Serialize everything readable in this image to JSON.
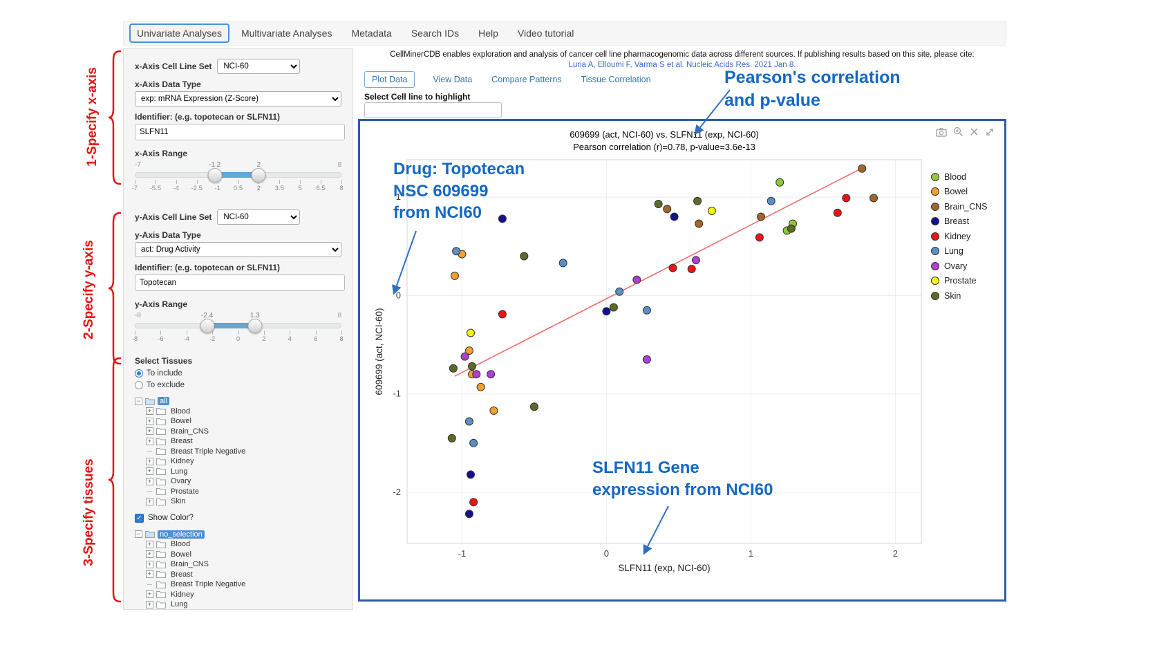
{
  "nav": {
    "items": [
      {
        "label": "Univariate Analyses",
        "active": true
      },
      {
        "label": "Multivariate Analyses",
        "active": false
      },
      {
        "label": "Metadata",
        "active": false
      },
      {
        "label": "Search IDs",
        "active": false
      },
      {
        "label": "Help",
        "active": false
      },
      {
        "label": "Video tutorial",
        "active": false
      }
    ]
  },
  "side_annotations": [
    {
      "label": "1-Specify x-axis"
    },
    {
      "label": "2-Specify y-axis"
    },
    {
      "label": "3-Specify tissues"
    }
  ],
  "sidebar": {
    "x_axis": {
      "cell_line_set_label": "x-Axis Cell Line Set",
      "cell_line_set_value": "NCI-60",
      "data_type_label": "x-Axis Data Type",
      "data_type_value": "exp: mRNA Expression (Z-Score)",
      "identifier_label": "Identifier: (e.g. topotecan or SLFN11)",
      "identifier_value": "SLFN11",
      "range_label": "x-Axis Range",
      "slider": {
        "min": -7,
        "max": 8,
        "from": -1.2,
        "to": 2,
        "ticks": [
          "-7",
          "-5.5",
          "-4",
          "-2.5",
          "-1",
          "0.5",
          "2",
          "3.5",
          "5",
          "6.5",
          "8"
        ]
      }
    },
    "y_axis": {
      "cell_line_set_label": "y-Axis Cell Line Set",
      "cell_line_set_value": "NCI-60",
      "data_type_label": "y-Axis Data Type",
      "data_type_value": "act: Drug Activity",
      "identifier_label": "Identifier: (e.g. topotecan or SLFN11)",
      "identifier_value": "Topotecan",
      "range_label": "y-Axis Range",
      "slider": {
        "min": -8,
        "max": 8,
        "from": -2.4,
        "to": 1.3,
        "ticks": [
          "-8",
          "-6",
          "-4",
          "-2",
          "0",
          "2",
          "4",
          "6",
          "8"
        ]
      }
    },
    "select_tissues_label": "Select Tissues",
    "radio_include": "To include",
    "radio_exclude": "To exclude",
    "include_selected": true,
    "show_color_label": "Show Color?",
    "show_color_checked": true,
    "tree_include": {
      "root": "all",
      "items": [
        {
          "label": "Blood",
          "expandable": true
        },
        {
          "label": "Bowel",
          "expandable": true
        },
        {
          "label": "Brain_CNS",
          "expandable": true
        },
        {
          "label": "Breast",
          "expandable": true
        },
        {
          "label": "Breast Triple Negative",
          "expandable": false
        },
        {
          "label": "Kidney",
          "expandable": true
        },
        {
          "label": "Lung",
          "expandable": true
        },
        {
          "label": "Ovary",
          "expandable": true
        },
        {
          "label": "Prostate",
          "expandable": false
        },
        {
          "label": "Skin",
          "expandable": true
        }
      ]
    },
    "tree_exclude": {
      "root": "no_selection",
      "items": [
        {
          "label": "Blood",
          "expandable": true
        },
        {
          "label": "Bowel",
          "expandable": true
        },
        {
          "label": "Brain_CNS",
          "expandable": true
        },
        {
          "label": "Breast",
          "expandable": true
        },
        {
          "label": "Breast Triple Negative",
          "expandable": false
        },
        {
          "label": "Kidney",
          "expandable": true
        },
        {
          "label": "Lung",
          "expandable": true
        },
        {
          "label": "Ovary",
          "expandable": true
        },
        {
          "label": "Prostate",
          "expandable": false
        },
        {
          "label": "Skin",
          "expandable": true
        }
      ]
    }
  },
  "main": {
    "citation": "CellMinerCDB enables exploration and analysis of cancer cell line pharmacogenomic data across different sources. If publishing results based on this site, please cite:",
    "citation_link": "Luna A, Elloumi F, Varma S et al. Nucleic Acids Res. 2021 Jan 8.",
    "tabs": [
      {
        "label": "Plot Data",
        "active": true
      },
      {
        "label": "View Data",
        "active": false
      },
      {
        "label": "Compare Patterns",
        "active": false
      },
      {
        "label": "Tissue Correlation",
        "active": false
      }
    ],
    "highlight_label": "Select Cell line to highlight",
    "highlight_value": ""
  },
  "annotations": {
    "pearson": [
      "Pearson's correlation",
      "and p-value"
    ],
    "drug": [
      "Drug: Topotecan",
      "NSC 609699",
      "from NCI60"
    ],
    "gene": [
      "SLFN11 Gene",
      "expression from NCI60"
    ],
    "color": "#1568c4"
  },
  "plot_toolbar": {
    "icons": [
      "camera-icon",
      "zoom-in-icon",
      "close-icon",
      "pan-icon"
    ]
  },
  "colors": {
    "accent_blue": "#4a90d9",
    "annotation_red": "#e81010",
    "plot_border_blue": "#2d5ba9",
    "slider_bar": "#64a8d8"
  },
  "chart_data": {
    "type": "scatter",
    "title": "609699 (act, NCI-60) vs. SLFN11 (exp, NCI-60)",
    "subtitle": "Pearson correlation (r)=0.78, p-value=3.6e-13",
    "xlabel": "SLFN11 (exp, NCI-60)",
    "ylabel": "609699 (act, NCI-60)",
    "xlim": [
      -1.38,
      2.18
    ],
    "ylim": [
      -2.52,
      1.38
    ],
    "xticks": [
      -1,
      0,
      1,
      2
    ],
    "yticks": [
      -2,
      -1,
      0,
      1
    ],
    "grid": true,
    "legend_position": "right",
    "pearson_r": 0.78,
    "p_value": "3.6e-13",
    "trend_line": {
      "x1": -1.05,
      "y1": -0.82,
      "x2": 1.79,
      "y2": 1.31,
      "color": "#f26b6b"
    },
    "series": [
      {
        "name": "Blood",
        "color": "#8fc93a",
        "points": [
          [
            1.2,
            1.15
          ],
          [
            1.29,
            0.73
          ],
          [
            1.25,
            0.66
          ]
        ]
      },
      {
        "name": "Bowel",
        "color": "#f5a02e",
        "points": [
          [
            -1.0,
            0.42
          ],
          [
            -1.05,
            0.2
          ],
          [
            -0.95,
            -0.56
          ],
          [
            -0.93,
            -0.8
          ],
          [
            -0.87,
            -0.93
          ],
          [
            -0.78,
            -1.17
          ]
        ]
      },
      {
        "name": "Brain_CNS",
        "color": "#a2662c",
        "points": [
          [
            0.42,
            0.88
          ],
          [
            0.64,
            0.73
          ],
          [
            1.07,
            0.8
          ],
          [
            1.77,
            1.29
          ],
          [
            1.85,
            0.99
          ]
        ]
      },
      {
        "name": "Breast",
        "color": "#12128e",
        "points": [
          [
            -0.72,
            0.78
          ],
          [
            0.47,
            0.8
          ],
          [
            0.0,
            -0.16
          ],
          [
            -0.94,
            -1.82
          ],
          [
            -0.95,
            -2.22
          ]
        ]
      },
      {
        "name": "Kidney",
        "color": "#f01414",
        "points": [
          [
            0.46,
            0.28
          ],
          [
            0.59,
            0.27
          ],
          [
            1.06,
            0.59
          ],
          [
            1.6,
            0.84
          ],
          [
            1.66,
            0.99
          ],
          [
            -0.72,
            -0.19
          ],
          [
            -0.92,
            -2.1
          ]
        ]
      },
      {
        "name": "Lung",
        "color": "#5b8fc5",
        "points": [
          [
            -1.04,
            0.45
          ],
          [
            -0.3,
            0.33
          ],
          [
            0.09,
            0.04
          ],
          [
            0.28,
            -0.15
          ],
          [
            1.14,
            0.96
          ],
          [
            -0.95,
            -1.28
          ],
          [
            -0.92,
            -1.5
          ]
        ]
      },
      {
        "name": "Ovary",
        "color": "#ad3fd3",
        "points": [
          [
            0.62,
            0.36
          ],
          [
            0.21,
            0.16
          ],
          [
            0.28,
            -0.65
          ],
          [
            -0.98,
            -0.62
          ],
          [
            -0.9,
            -0.8
          ],
          [
            -0.8,
            -0.8
          ]
        ]
      },
      {
        "name": "Prostate",
        "color": "#f5f513",
        "points": [
          [
            0.73,
            0.86
          ],
          [
            -0.94,
            -0.38
          ]
        ]
      },
      {
        "name": "Skin",
        "color": "#5d6b28",
        "points": [
          [
            0.36,
            0.93
          ],
          [
            0.63,
            0.96
          ],
          [
            1.28,
            0.68
          ],
          [
            -0.57,
            0.4
          ],
          [
            -1.06,
            -0.74
          ],
          [
            -0.93,
            -0.72
          ],
          [
            -0.5,
            -1.13
          ],
          [
            -1.07,
            -1.45
          ],
          [
            0.05,
            -0.12
          ]
        ]
      }
    ]
  }
}
